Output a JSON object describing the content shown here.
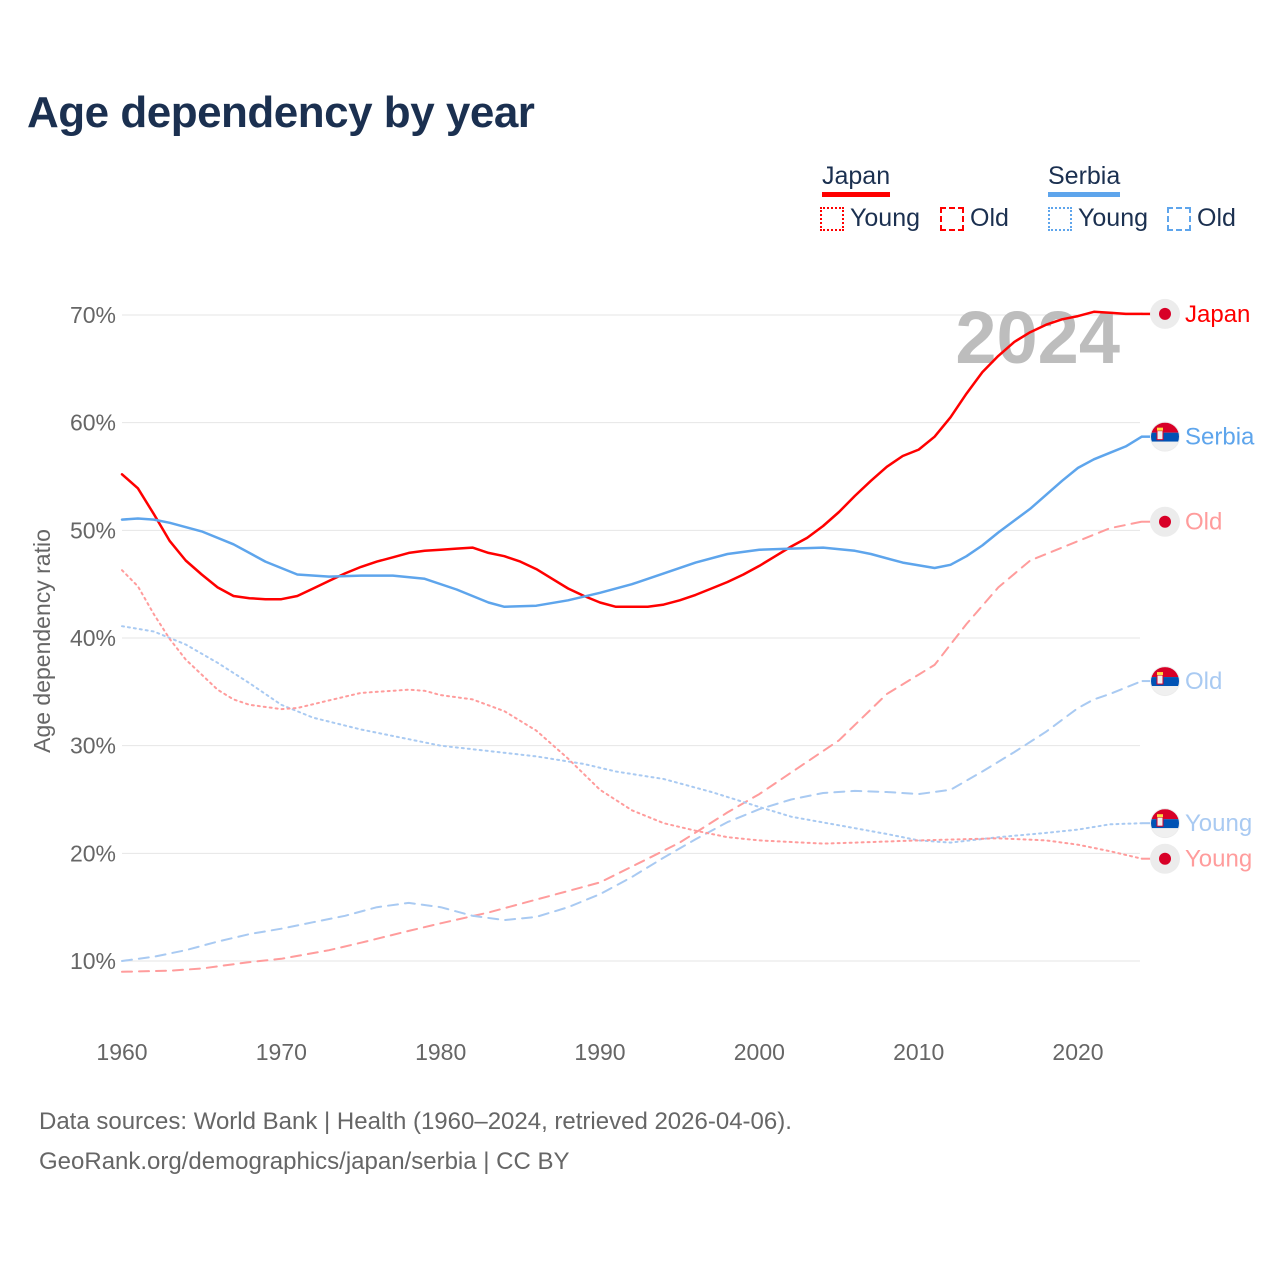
{
  "title": "Age dependency by year",
  "legend": {
    "countries": [
      {
        "name": "Japan",
        "color": "#ff0000",
        "light": "#ff9c9c",
        "items": [
          "Young",
          "Old"
        ]
      },
      {
        "name": "Serbia",
        "color": "#5ea5ec",
        "light": "#a9caf2",
        "items": [
          "Young",
          "Old"
        ]
      }
    ]
  },
  "year_watermark": "2024",
  "sources": {
    "line1": "Data sources: World Bank | Health (1960–2024, retrieved 2026-04-06).",
    "line2": "GeoRank.org/demographics/japan/serbia | CC BY"
  },
  "chart_data": {
    "type": "line",
    "title": "Age dependency by year",
    "xlabel": "",
    "ylabel": "Age dependency ratio",
    "xlim": [
      1960,
      2024
    ],
    "ylim": [
      5,
      72
    ],
    "xticks": [
      "1960",
      "1970",
      "1980",
      "1990",
      "2000",
      "2010",
      "2020"
    ],
    "yticks": [
      "10%",
      "20%",
      "30%",
      "40%",
      "50%",
      "60%",
      "70%"
    ],
    "grid": true,
    "series": [
      {
        "name": "Japan",
        "label": "Japan",
        "style": "solid",
        "color": "#ff0000",
        "flag": "japan",
        "points": [
          [
            1960,
            55.2
          ],
          [
            1961,
            53.9
          ],
          [
            1962,
            51.5
          ],
          [
            1963,
            49.0
          ],
          [
            1964,
            47.2
          ],
          [
            1965,
            45.9
          ],
          [
            1966,
            44.7
          ],
          [
            1967,
            43.9
          ],
          [
            1968,
            43.7
          ],
          [
            1969,
            43.6
          ],
          [
            1970,
            43.6
          ],
          [
            1971,
            43.9
          ],
          [
            1972,
            44.6
          ],
          [
            1973,
            45.3
          ],
          [
            1974,
            46.0
          ],
          [
            1975,
            46.6
          ],
          [
            1976,
            47.1
          ],
          [
            1977,
            47.5
          ],
          [
            1978,
            47.9
          ],
          [
            1979,
            48.1
          ],
          [
            1980,
            48.2
          ],
          [
            1981,
            48.3
          ],
          [
            1982,
            48.4
          ],
          [
            1983,
            47.9
          ],
          [
            1984,
            47.6
          ],
          [
            1985,
            47.1
          ],
          [
            1986,
            46.4
          ],
          [
            1987,
            45.5
          ],
          [
            1988,
            44.6
          ],
          [
            1989,
            43.9
          ],
          [
            1990,
            43.3
          ],
          [
            1991,
            42.9
          ],
          [
            1992,
            42.9
          ],
          [
            1993,
            42.9
          ],
          [
            1994,
            43.1
          ],
          [
            1995,
            43.5
          ],
          [
            1996,
            44.0
          ],
          [
            1997,
            44.6
          ],
          [
            1998,
            45.2
          ],
          [
            1999,
            45.9
          ],
          [
            2000,
            46.7
          ],
          [
            2001,
            47.6
          ],
          [
            2002,
            48.5
          ],
          [
            2003,
            49.3
          ],
          [
            2004,
            50.4
          ],
          [
            2005,
            51.7
          ],
          [
            2006,
            53.2
          ],
          [
            2007,
            54.6
          ],
          [
            2008,
            55.9
          ],
          [
            2009,
            56.9
          ],
          [
            2010,
            57.5
          ],
          [
            2011,
            58.7
          ],
          [
            2012,
            60.5
          ],
          [
            2013,
            62.7
          ],
          [
            2014,
            64.7
          ],
          [
            2015,
            66.2
          ],
          [
            2016,
            67.5
          ],
          [
            2017,
            68.4
          ],
          [
            2018,
            69.1
          ],
          [
            2019,
            69.6
          ],
          [
            2020,
            69.9
          ],
          [
            2021,
            70.3
          ],
          [
            2022,
            70.2
          ],
          [
            2023,
            70.1
          ],
          [
            2024,
            70.1
          ]
        ]
      },
      {
        "name": "Serbia",
        "label": "Serbia",
        "style": "solid",
        "color": "#5ea5ec",
        "flag": "serbia",
        "points": [
          [
            1960,
            51.0
          ],
          [
            1961,
            51.1
          ],
          [
            1962,
            51.0
          ],
          [
            1963,
            50.7
          ],
          [
            1965,
            49.9
          ],
          [
            1967,
            48.7
          ],
          [
            1969,
            47.1
          ],
          [
            1971,
            45.9
          ],
          [
            1973,
            45.7
          ],
          [
            1975,
            45.8
          ],
          [
            1977,
            45.8
          ],
          [
            1979,
            45.5
          ],
          [
            1981,
            44.5
          ],
          [
            1983,
            43.3
          ],
          [
            1984,
            42.9
          ],
          [
            1986,
            43.0
          ],
          [
            1988,
            43.5
          ],
          [
            1990,
            44.2
          ],
          [
            1992,
            45.0
          ],
          [
            1994,
            46.0
          ],
          [
            1996,
            47.0
          ],
          [
            1998,
            47.8
          ],
          [
            2000,
            48.2
          ],
          [
            2002,
            48.3
          ],
          [
            2004,
            48.4
          ],
          [
            2006,
            48.1
          ],
          [
            2007,
            47.8
          ],
          [
            2009,
            47.0
          ],
          [
            2011,
            46.5
          ],
          [
            2012,
            46.8
          ],
          [
            2013,
            47.6
          ],
          [
            2014,
            48.6
          ],
          [
            2015,
            49.8
          ],
          [
            2017,
            52.0
          ],
          [
            2019,
            54.6
          ],
          [
            2020,
            55.8
          ],
          [
            2021,
            56.6
          ],
          [
            2022,
            57.2
          ],
          [
            2023,
            57.8
          ],
          [
            2024,
            58.7
          ]
        ]
      },
      {
        "name": "Japan Old",
        "label": "Old",
        "style": "dashed",
        "color": "#ff9c9c",
        "flag": "japan",
        "points": [
          [
            1960,
            9.0
          ],
          [
            1963,
            9.1
          ],
          [
            1965,
            9.3
          ],
          [
            1968,
            9.9
          ],
          [
            1970,
            10.2
          ],
          [
            1973,
            11.0
          ],
          [
            1975,
            11.7
          ],
          [
            1978,
            12.8
          ],
          [
            1980,
            13.5
          ],
          [
            1983,
            14.5
          ],
          [
            1985,
            15.3
          ],
          [
            1988,
            16.5
          ],
          [
            1990,
            17.3
          ],
          [
            1993,
            19.5
          ],
          [
            1995,
            21.0
          ],
          [
            1998,
            23.8
          ],
          [
            2000,
            25.5
          ],
          [
            2003,
            28.5
          ],
          [
            2005,
            30.5
          ],
          [
            2008,
            34.8
          ],
          [
            2010,
            36.6
          ],
          [
            2011,
            37.5
          ],
          [
            2013,
            41.3
          ],
          [
            2015,
            44.7
          ],
          [
            2017,
            47.2
          ],
          [
            2020,
            49.0
          ],
          [
            2022,
            50.2
          ],
          [
            2024,
            50.8
          ]
        ]
      },
      {
        "name": "Serbia Old",
        "label": "Old",
        "style": "dashed",
        "color": "#a9caf2",
        "flag": "serbia",
        "points": [
          [
            1960,
            10.0
          ],
          [
            1962,
            10.4
          ],
          [
            1964,
            11.0
          ],
          [
            1966,
            11.8
          ],
          [
            1968,
            12.5
          ],
          [
            1970,
            13.0
          ],
          [
            1972,
            13.6
          ],
          [
            1974,
            14.2
          ],
          [
            1976,
            15.0
          ],
          [
            1978,
            15.4
          ],
          [
            1980,
            15.0
          ],
          [
            1982,
            14.2
          ],
          [
            1984,
            13.8
          ],
          [
            1986,
            14.1
          ],
          [
            1988,
            15.0
          ],
          [
            1990,
            16.2
          ],
          [
            1992,
            17.8
          ],
          [
            1994,
            19.6
          ],
          [
            1996,
            21.3
          ],
          [
            1998,
            22.9
          ],
          [
            2000,
            24.1
          ],
          [
            2002,
            25.0
          ],
          [
            2004,
            25.6
          ],
          [
            2006,
            25.8
          ],
          [
            2008,
            25.7
          ],
          [
            2010,
            25.5
          ],
          [
            2012,
            25.9
          ],
          [
            2014,
            27.6
          ],
          [
            2016,
            29.4
          ],
          [
            2018,
            31.3
          ],
          [
            2020,
            33.5
          ],
          [
            2021,
            34.3
          ],
          [
            2022,
            34.8
          ],
          [
            2023,
            35.4
          ],
          [
            2024,
            36.0
          ]
        ]
      },
      {
        "name": "Serbia Young",
        "label": "Young",
        "style": "dotted",
        "color": "#a9caf2",
        "flag": "serbia",
        "points": [
          [
            1960,
            41.1
          ],
          [
            1962,
            40.6
          ],
          [
            1964,
            39.4
          ],
          [
            1966,
            37.7
          ],
          [
            1968,
            35.8
          ],
          [
            1970,
            33.8
          ],
          [
            1972,
            32.6
          ],
          [
            1975,
            31.5
          ],
          [
            1978,
            30.6
          ],
          [
            1980,
            30.0
          ],
          [
            1983,
            29.5
          ],
          [
            1986,
            29.0
          ],
          [
            1989,
            28.3
          ],
          [
            1991,
            27.6
          ],
          [
            1994,
            26.9
          ],
          [
            1997,
            25.7
          ],
          [
            2000,
            24.3
          ],
          [
            2002,
            23.4
          ],
          [
            2005,
            22.6
          ],
          [
            2008,
            21.8
          ],
          [
            2010,
            21.2
          ],
          [
            2012,
            21.0
          ],
          [
            2015,
            21.5
          ],
          [
            2018,
            21.9
          ],
          [
            2020,
            22.2
          ],
          [
            2022,
            22.7
          ],
          [
            2024,
            22.8
          ]
        ]
      },
      {
        "name": "Japan Young",
        "label": "Young",
        "style": "dotted",
        "color": "#ff9c9c",
        "flag": "japan",
        "points": [
          [
            1960,
            46.3
          ],
          [
            1961,
            44.8
          ],
          [
            1962,
            42.2
          ],
          [
            1963,
            39.9
          ],
          [
            1964,
            38.0
          ],
          [
            1965,
            36.6
          ],
          [
            1966,
            35.2
          ],
          [
            1967,
            34.3
          ],
          [
            1968,
            33.8
          ],
          [
            1970,
            33.4
          ],
          [
            1971,
            33.5
          ],
          [
            1973,
            34.2
          ],
          [
            1975,
            34.9
          ],
          [
            1978,
            35.2
          ],
          [
            1979,
            35.1
          ],
          [
            1980,
            34.7
          ],
          [
            1982,
            34.3
          ],
          [
            1984,
            33.2
          ],
          [
            1986,
            31.4
          ],
          [
            1988,
            28.8
          ],
          [
            1990,
            25.9
          ],
          [
            1992,
            24.0
          ],
          [
            1994,
            22.8
          ],
          [
            1996,
            22.1
          ],
          [
            1998,
            21.5
          ],
          [
            2000,
            21.2
          ],
          [
            2004,
            20.9
          ],
          [
            2006,
            21.0
          ],
          [
            2010,
            21.2
          ],
          [
            2015,
            21.4
          ],
          [
            2018,
            21.2
          ],
          [
            2020,
            20.8
          ],
          [
            2022,
            20.2
          ],
          [
            2024,
            19.5
          ]
        ]
      }
    ]
  }
}
